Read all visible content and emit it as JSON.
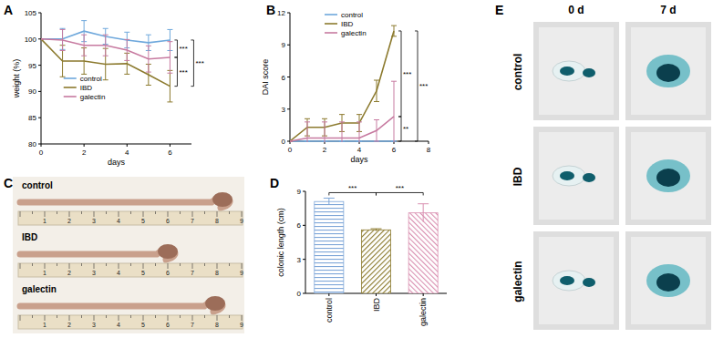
{
  "chart_data": [
    {
      "type": "line",
      "title": "A",
      "x_label": "days",
      "y_label": "weight (%)",
      "x": [
        0,
        1,
        2,
        3,
        4,
        5,
        6
      ],
      "xlim": [
        0,
        7
      ],
      "xticks": [
        0,
        2,
        4,
        6
      ],
      "ylim": [
        80,
        105
      ],
      "yticks": [
        80,
        85,
        90,
        95,
        100,
        105
      ],
      "legend": "center left",
      "series": [
        {
          "name": "control",
          "color": "#6fa8dc",
          "values": [
            100,
            100,
            101.5,
            100.5,
            99.8,
            99.3,
            99.8
          ],
          "errors": [
            0,
            2,
            2,
            1.5,
            1.5,
            1.5,
            2
          ]
        },
        {
          "name": "IBD",
          "color": "#8c7a2e",
          "values": [
            100,
            95.8,
            95.8,
            95.2,
            95.3,
            93.2,
            91
          ],
          "errors": [
            0,
            3,
            2.5,
            3,
            2,
            2,
            3
          ]
        },
        {
          "name": "galectin",
          "color": "#c77aa0",
          "values": [
            100,
            99.8,
            98.8,
            98.8,
            97.9,
            96.2,
            96.5
          ],
          "errors": [
            0,
            2,
            2,
            2,
            2,
            2.5,
            3
          ]
        }
      ],
      "annotations": [
        {
          "text": "***",
          "between": [
            "control",
            "galectin"
          ]
        },
        {
          "text": "***",
          "between": [
            "galectin",
            "IBD"
          ]
        },
        {
          "text": "***",
          "between": [
            "control",
            "IBD"
          ]
        }
      ]
    },
    {
      "type": "line",
      "title": "B",
      "x_label": "days",
      "y_label": "DAI score",
      "x": [
        0,
        1,
        2,
        3,
        4,
        5,
        6
      ],
      "xlim": [
        0,
        8
      ],
      "xticks": [
        0,
        2,
        4,
        6,
        8
      ],
      "ylim": [
        0,
        12
      ],
      "yticks": [
        0,
        3,
        6,
        9,
        12
      ],
      "legend": "upper left",
      "series": [
        {
          "name": "control",
          "color": "#6fa8dc",
          "values": [
            0,
            0,
            0,
            0,
            0,
            0,
            0
          ],
          "errors": [
            0,
            0,
            0,
            0,
            0,
            0,
            0
          ]
        },
        {
          "name": "IBD",
          "color": "#8c7a2e",
          "values": [
            0,
            1.3,
            1.3,
            1.7,
            1.7,
            4.7,
            10.3
          ],
          "errors": [
            0,
            0.8,
            0.8,
            0.8,
            0.8,
            1,
            0.5
          ]
        },
        {
          "name": "galectin",
          "color": "#c77aa0",
          "values": [
            0,
            0.3,
            0.3,
            0.3,
            0.3,
            1,
            2.3
          ],
          "errors": [
            0,
            1.5,
            1.5,
            1.5,
            1.5,
            1,
            3.3
          ]
        }
      ],
      "annotations": [
        {
          "text": "***",
          "between": [
            "IBD",
            "galectin"
          ]
        },
        {
          "text": "***",
          "between": [
            "IBD",
            "control"
          ]
        },
        {
          "text": "**",
          "between": [
            "galectin",
            "control"
          ]
        }
      ]
    },
    {
      "type": "bar",
      "title": "D",
      "y_label": "colonic length (cm)",
      "categories": [
        "control",
        "IBD",
        "galectin"
      ],
      "values": [
        8.1,
        5.6,
        7.1
      ],
      "errors": [
        0.3,
        0.1,
        0.8
      ],
      "colors": [
        "#7ea6d8",
        "#8c7a2e",
        "#d98fb0"
      ],
      "ylim": [
        0,
        9
      ],
      "yticks": [
        0,
        3,
        6,
        9
      ],
      "annotations": [
        {
          "text": "***",
          "between": [
            "control",
            "IBD"
          ]
        },
        {
          "text": "***",
          "between": [
            "IBD",
            "galectin"
          ]
        }
      ]
    }
  ],
  "photos": [
    {
      "title": "C",
      "rows": [
        "control",
        "IBD",
        "galectin"
      ],
      "ruler_labels": [
        "1",
        "2",
        "3",
        "4",
        "5",
        "6",
        "7",
        "8",
        "9"
      ]
    },
    {
      "title": "E",
      "columns": [
        "0 d",
        "7 d"
      ],
      "rows": [
        "control",
        "IBD",
        "galectin"
      ]
    }
  ]
}
